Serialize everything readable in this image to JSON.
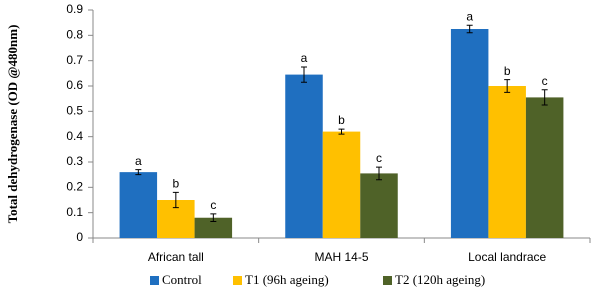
{
  "chart_data": {
    "type": "bar",
    "y_label": "Total dehydrogenase (OD @480nm)",
    "categories": [
      "African tall",
      "MAH 14-5",
      "Local  landrace"
    ],
    "series": [
      {
        "name": "Control",
        "color": "#1f6fc0",
        "values": [
          0.26,
          0.645,
          0.825
        ],
        "errors": [
          0.01,
          0.03,
          0.015
        ],
        "letters": [
          "a",
          "a",
          "a"
        ]
      },
      {
        "name": "T1 (96h ageing)",
        "color": "#ffc000",
        "values": [
          0.15,
          0.42,
          0.6
        ],
        "errors": [
          0.03,
          0.01,
          0.025
        ],
        "letters": [
          "b",
          "b",
          "b"
        ]
      },
      {
        "name": "T2 (120h ageing)",
        "color": "#4f6228",
        "values": [
          0.08,
          0.255,
          0.555
        ],
        "errors": [
          0.015,
          0.025,
          0.03
        ],
        "letters": [
          "c",
          "c",
          "c"
        ]
      }
    ],
    "ylim": [
      0,
      0.9
    ],
    "yticks": [
      0,
      0.1,
      0.2,
      0.3,
      0.4,
      0.5,
      0.6,
      0.7,
      0.8,
      0.9
    ],
    "grid": false,
    "legend": "bottom"
  }
}
